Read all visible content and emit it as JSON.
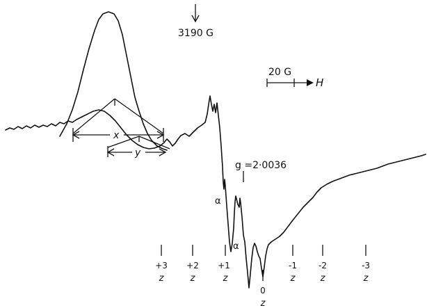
{
  "chart_data": {
    "type": "line",
    "field_marker": {
      "label": "3190 G"
    },
    "scale_bar": {
      "label": "20 G",
      "axis_label": "H"
    },
    "g_marker": {
      "label": "g =2·0036"
    },
    "alpha_labels": [
      "α",
      "α"
    ],
    "hyperfine_labels": {
      "x": "x",
      "y": "y"
    },
    "positions": [
      {
        "num": "+3",
        "letter": "z"
      },
      {
        "num": "+2",
        "letter": "z"
      },
      {
        "num": "+1",
        "letter": "z"
      },
      {
        "num": "0",
        "letter": "z"
      },
      {
        "num": "-1",
        "letter": "z"
      },
      {
        "num": "-2",
        "letter": "z"
      },
      {
        "num": "-3",
        "letter": "z"
      }
    ]
  }
}
